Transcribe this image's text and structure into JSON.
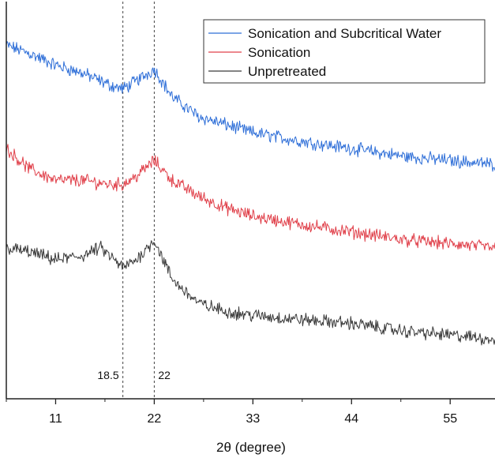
{
  "chart_data": {
    "type": "line",
    "title": "",
    "xlabel": "2θ (degree)",
    "ylabel": "",
    "xlim": [
      5.5,
      60
    ],
    "ylim": [
      0,
      100
    ],
    "xticks": [
      11,
      22,
      33,
      44,
      55
    ],
    "grid": false,
    "legend_position": "top-right",
    "series": [
      {
        "name": "Sonication and Subcritical Water",
        "color": "#2f6fd8",
        "x": [
          5.5,
          8,
          11,
          14,
          17,
          18.5,
          20,
          22,
          24,
          27,
          30,
          33,
          38,
          44,
          50,
          55,
          60
        ],
        "y": [
          89,
          87,
          84,
          82,
          79,
          78,
          80,
          83,
          76,
          71,
          69,
          67,
          65,
          63,
          61,
          60,
          59
        ]
      },
      {
        "name": "Sonication",
        "color": "#e0404a",
        "x": [
          5.5,
          8,
          11,
          14,
          17,
          18.5,
          20,
          22,
          24,
          27,
          30,
          33,
          38,
          44,
          50,
          55,
          60
        ],
        "y": [
          63,
          58,
          55,
          55,
          54,
          54,
          56,
          60,
          55,
          51,
          48,
          46,
          44,
          42,
          40,
          39,
          38
        ]
      },
      {
        "name": "Unpretreated",
        "color": "#3a3a3a",
        "x": [
          5.5,
          8,
          11,
          14,
          16,
          18.5,
          20,
          22,
          24,
          27,
          30,
          33,
          38,
          44,
          50,
          55,
          60
        ],
        "y": [
          38,
          37,
          35,
          36,
          38,
          33,
          35,
          40,
          30,
          24,
          22,
          21,
          20,
          19,
          17,
          16,
          15
        ]
      }
    ],
    "annotations": [
      {
        "x": 18.5,
        "label": "18.5",
        "line": "dashed"
      },
      {
        "x": 22,
        "label": "22",
        "line": "dashed"
      }
    ]
  }
}
